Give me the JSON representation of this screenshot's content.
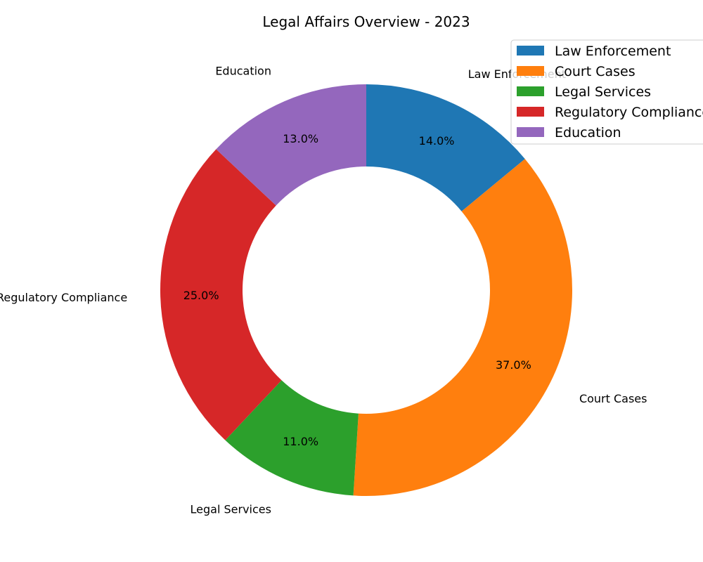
{
  "chart_data": {
    "type": "pie",
    "variant": "donut",
    "title": "Legal Affairs Overview - 2023",
    "categories": [
      "Law Enforcement",
      "Court Cases",
      "Legal Services",
      "Regulatory Compliance",
      "Education"
    ],
    "values": [
      14.0,
      37.0,
      11.0,
      25.0,
      13.0
    ],
    "percent_labels": [
      "14.0%",
      "37.0%",
      "11.0%",
      "25.0%",
      "13.0%"
    ],
    "colors": [
      "#1f77b4",
      "#ff7f0e",
      "#2ca02c",
      "#d62728",
      "#9467bd"
    ],
    "start_angle_deg": 90,
    "direction": "clockwise",
    "legend": {
      "placement": "top-right",
      "entries": [
        "Law Enforcement",
        "Court Cases",
        "Legal Services",
        "Regulatory Compliance",
        "Education"
      ]
    }
  }
}
